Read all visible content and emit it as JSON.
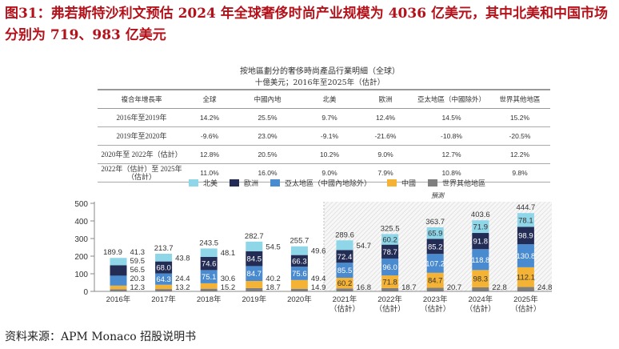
{
  "title": "图31：弗若斯特沙利文预估 2024 年全球奢侈时尚产业规模为 4036 亿美元，其中北美和中国市场分别为 719、983 亿美元",
  "table": {
    "title": "按地區劃分的奢侈時尚產品行業明細（全球）",
    "subtitle": "十億美元；2016年至2025年（估計）",
    "headers": [
      "複合年增長率",
      "全球",
      "中國內地",
      "北美",
      "歐洲",
      "亞太地區（中國除外）",
      "世界其他地區"
    ],
    "rows": [
      [
        "2016年至2019年",
        "14.2%",
        "25.5%",
        "9.7%",
        "12.4%",
        "14.5%",
        "15.2%"
      ],
      [
        "2019年至2020年",
        "-9.6%",
        "23.0%",
        "-9.1%",
        "-21.6%",
        "-10.8%",
        "-20.5%"
      ],
      [
        "2020年至 2022年（估計）",
        "12.8%",
        "20.5%",
        "10.2%",
        "9.0%",
        "12.7%",
        "12.2%"
      ],
      [
        "2022年（估計）至 2025年（估計）",
        "11.0%",
        "16.0%",
        "9.0%",
        "7.9%",
        "10.8%",
        "9.8%"
      ]
    ]
  },
  "chart_data": {
    "type": "bar",
    "stacked": true,
    "categories": [
      "2016年",
      "2017年",
      "2018年",
      "2019年",
      "2020年",
      "2021年（估計）",
      "2022年（估計）",
      "2023年（估計）",
      "2024年（估計）",
      "2025年（估計）"
    ],
    "forecast_label": "預測",
    "ylim": [
      0,
      500
    ],
    "yticks": [
      0,
      100,
      200,
      300,
      400,
      500
    ],
    "legend_position": "top",
    "series": [
      {
        "name": "世界其他地區",
        "color": "#7f7f7f",
        "values": [
          12.3,
          13.2,
          15.2,
          18.7,
          14.9,
          16.8,
          18.7,
          20.7,
          22.8,
          24.8
        ]
      },
      {
        "name": "中國",
        "color": "#f5b335",
        "values": [
          20.3,
          24.4,
          30.6,
          40.2,
          49.4,
          60.2,
          71.8,
          84.7,
          98.3,
          112.1
        ]
      },
      {
        "name": "亞太地區（中國內地除外）",
        "color": "#4a8bd0",
        "values": [
          56.5,
          64.3,
          75.1,
          84.7,
          75.6,
          85.5,
          96.0,
          107.2,
          118.8,
          130.8
        ]
      },
      {
        "name": "歐洲",
        "color": "#232c55",
        "values": [
          59.5,
          68.0,
          74.6,
          84.5,
          66.3,
          72.4,
          78.7,
          85.2,
          91.8,
          98.9
        ]
      },
      {
        "name": "北美",
        "color": "#8ed6e8",
        "values": [
          41.3,
          43.8,
          48.1,
          54.5,
          49.6,
          54.7,
          60.2,
          65.9,
          71.9,
          78.1
        ]
      }
    ],
    "legend_order": [
      "北美",
      "歐洲",
      "亞太地區（中國內地除外）",
      "中國",
      "世界其他地區"
    ],
    "totals": [
      189.9,
      213.7,
      243.5,
      282.7,
      255.7,
      289.6,
      325.5,
      363.7,
      403.6,
      444.7
    ]
  },
  "source": "资料来源：APM Monaco 招股说明书"
}
